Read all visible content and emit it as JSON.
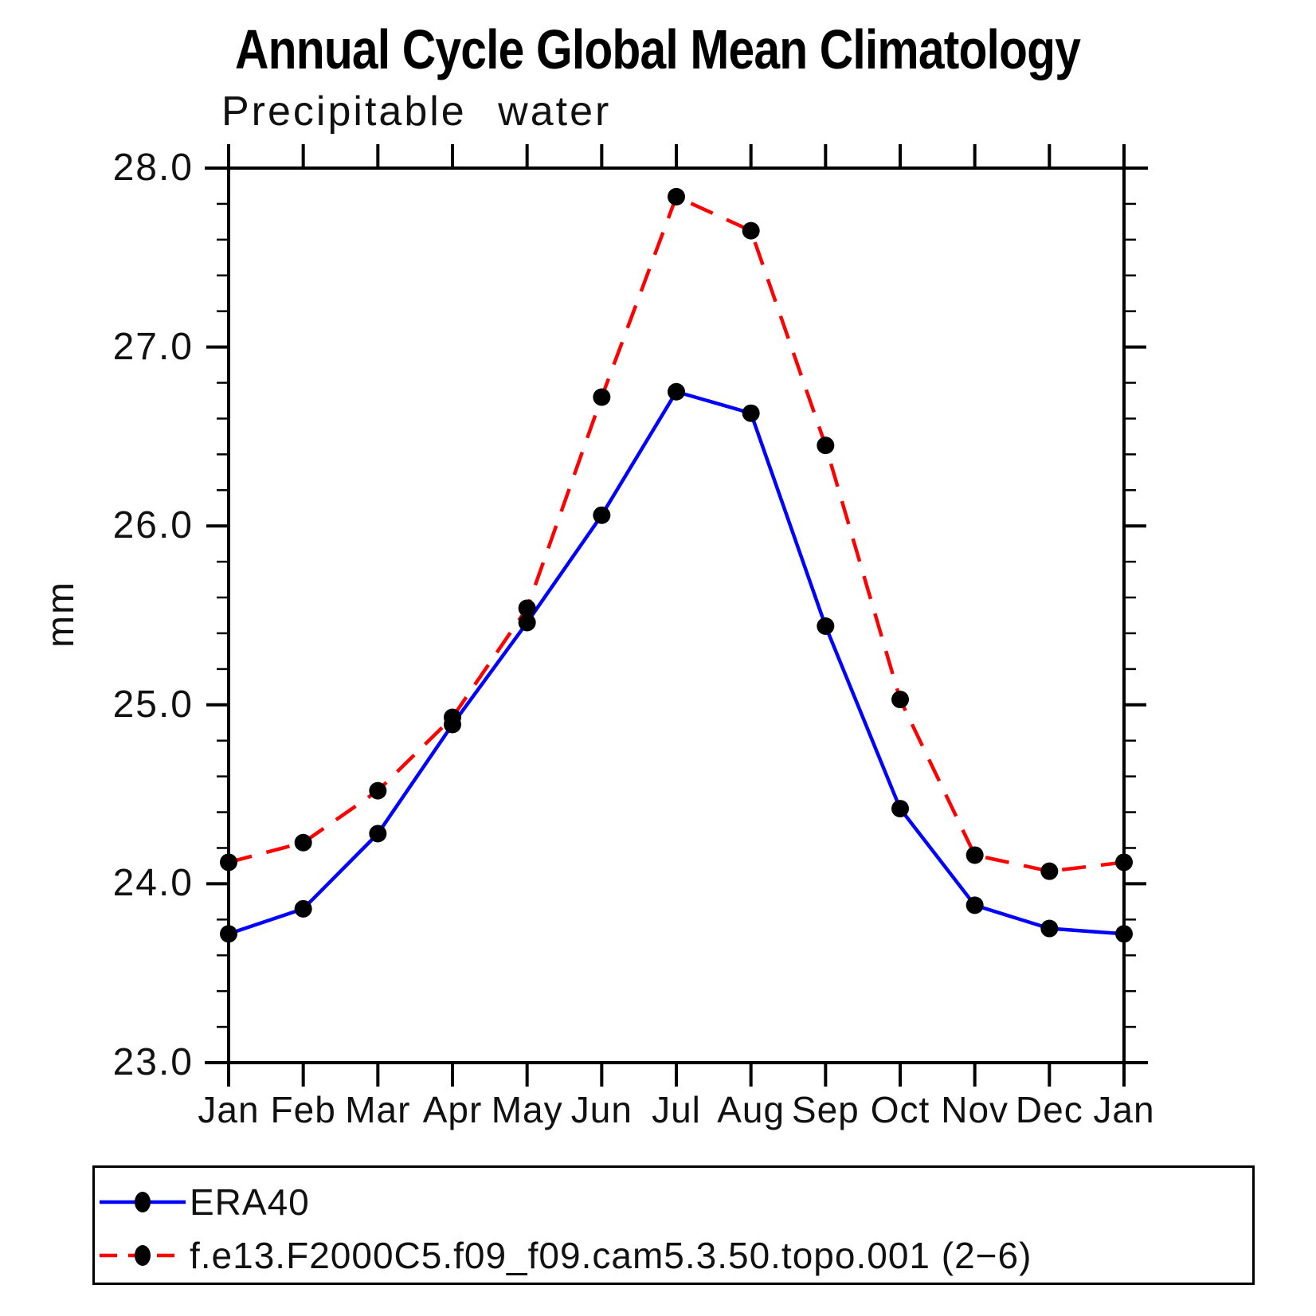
{
  "title": "Annual Cycle Global Mean Climatology",
  "chart_data": {
    "type": "line",
    "title": "Annual Cycle Global Mean Climatology",
    "subtitle": "Precipitable water",
    "xlabel": "",
    "ylabel": "mm",
    "ylim": [
      23.0,
      28.0
    ],
    "ytick_major_step": 1.0,
    "ytick_minor_step": 0.2,
    "ytick_labels": [
      "28.0",
      "27.0",
      "26.0",
      "25.0",
      "24.0",
      "23.0"
    ],
    "categories": [
      "Jan",
      "Feb",
      "Mar",
      "Apr",
      "May",
      "Jun",
      "Jul",
      "Aug",
      "Sep",
      "Oct",
      "Nov",
      "Dec",
      "Jan"
    ],
    "grid": false,
    "legend_position": "bottom",
    "marker_color": "#000000",
    "series": [
      {
        "name": "ERA40",
        "color": "#0000ff",
        "style": "solid",
        "values": [
          23.72,
          23.86,
          24.28,
          24.89,
          25.46,
          26.06,
          26.75,
          26.63,
          25.44,
          24.42,
          23.88,
          23.75,
          23.72
        ]
      },
      {
        "name": "f.e13.F2000C5.f09_f09.cam5.3.50.topo.001 (2−6)",
        "color": "#ff0000",
        "style": "dashed",
        "values": [
          24.12,
          24.23,
          24.52,
          24.93,
          25.54,
          26.72,
          27.84,
          27.65,
          26.45,
          25.03,
          24.16,
          24.07,
          24.12
        ]
      }
    ]
  }
}
